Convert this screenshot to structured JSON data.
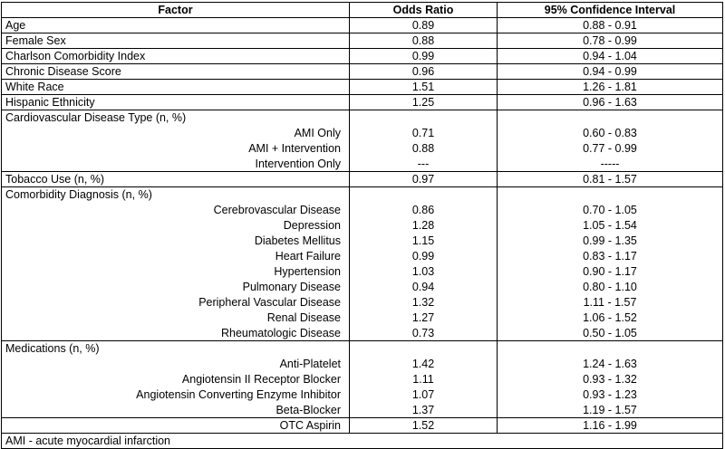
{
  "table": {
    "columns": [
      "Factor",
      "Odds Ratio",
      "95% Confidence Interval"
    ],
    "rows": [
      {
        "factor": "Age",
        "odds_ratio": "0.89",
        "ci": "0.88 - 0.91",
        "indent": false,
        "line_above": true
      },
      {
        "factor": "Female Sex",
        "odds_ratio": "0.88",
        "ci": "0.78 - 0.99",
        "indent": false,
        "line_above": true
      },
      {
        "factor": "Charlson Comorbidity Index",
        "odds_ratio": "0.99",
        "ci": "0.94 - 1.04",
        "indent": false,
        "line_above": true
      },
      {
        "factor": "Chronic Disease Score",
        "odds_ratio": "0.96",
        "ci": "0.94 - 0.99",
        "indent": false,
        "line_above": true
      },
      {
        "factor": "White Race",
        "odds_ratio": "1.51",
        "ci": "1.26 - 1.81",
        "indent": false,
        "line_above": true
      },
      {
        "factor": "Hispanic Ethnicity",
        "odds_ratio": "1.25",
        "ci": "0.96 - 1.63",
        "indent": false,
        "line_above": true
      },
      {
        "factor": "Cardiovascular Disease Type (n, %)",
        "odds_ratio": "",
        "ci": "",
        "indent": false,
        "line_above": true
      },
      {
        "factor": "AMI Only",
        "odds_ratio": "0.71",
        "ci": "0.60 - 0.83",
        "indent": true,
        "line_above": false
      },
      {
        "factor": "AMI + Intervention",
        "odds_ratio": "0.88",
        "ci": "0.77 - 0.99",
        "indent": true,
        "line_above": false
      },
      {
        "factor": "Intervention Only",
        "odds_ratio": "---",
        "ci": "-----",
        "indent": true,
        "line_above": false
      },
      {
        "factor": "Tobacco Use (n, %)",
        "odds_ratio": "0.97",
        "ci": "0.81 - 1.57",
        "indent": false,
        "line_above": true
      },
      {
        "factor": "Comorbidity Diagnosis (n, %)",
        "odds_ratio": "",
        "ci": "",
        "indent": false,
        "line_above": true
      },
      {
        "factor": "Cerebrovascular Disease",
        "odds_ratio": "0.86",
        "ci": "0.70 - 1.05",
        "indent": true,
        "line_above": false
      },
      {
        "factor": "Depression",
        "odds_ratio": "1.28",
        "ci": "1.05 - 1.54",
        "indent": true,
        "line_above": false
      },
      {
        "factor": "Diabetes Mellitus",
        "odds_ratio": "1.15",
        "ci": "0.99 - 1.35",
        "indent": true,
        "line_above": false
      },
      {
        "factor": "Heart Failure",
        "odds_ratio": "0.99",
        "ci": "0.83 - 1.17",
        "indent": true,
        "line_above": false
      },
      {
        "factor": "Hypertension",
        "odds_ratio": "1.03",
        "ci": "0.90 - 1.17",
        "indent": true,
        "line_above": false
      },
      {
        "factor": "Pulmonary Disease",
        "odds_ratio": "0.94",
        "ci": "0.80 - 1.10",
        "indent": true,
        "line_above": false
      },
      {
        "factor": "Peripheral Vascular Disease",
        "odds_ratio": "1.32",
        "ci": "1.11 - 1.57",
        "indent": true,
        "line_above": false
      },
      {
        "factor": "Renal Disease",
        "odds_ratio": "1.27",
        "ci": "1.06 - 1.52",
        "indent": true,
        "line_above": false
      },
      {
        "factor": "Rheumatologic Disease",
        "odds_ratio": "0.73",
        "ci": "0.50 - 1.05",
        "indent": true,
        "line_above": false
      },
      {
        "factor": "Medications (n, %)",
        "odds_ratio": "",
        "ci": "",
        "indent": false,
        "line_above": true
      },
      {
        "factor": "Anti-Platelet",
        "odds_ratio": "1.42",
        "ci": "1.24 - 1.63",
        "indent": true,
        "line_above": false
      },
      {
        "factor": "Angiotensin II Receptor Blocker",
        "odds_ratio": "1.11",
        "ci": "0.93 - 1.32",
        "indent": true,
        "line_above": false
      },
      {
        "factor": "Angiotensin Converting Enzyme Inhibitor",
        "odds_ratio": "1.07",
        "ci": "0.93 - 1.23",
        "indent": true,
        "line_above": false
      },
      {
        "factor": "Beta-Blocker",
        "odds_ratio": "1.37",
        "ci": "1.19 - 1.57",
        "indent": true,
        "line_above": false
      },
      {
        "factor": "OTC Aspirin",
        "odds_ratio": "1.52",
        "ci": "1.16 - 1.99",
        "indent": true,
        "line_above": true
      }
    ],
    "footnote": "AMI - acute myocardial infarction"
  }
}
